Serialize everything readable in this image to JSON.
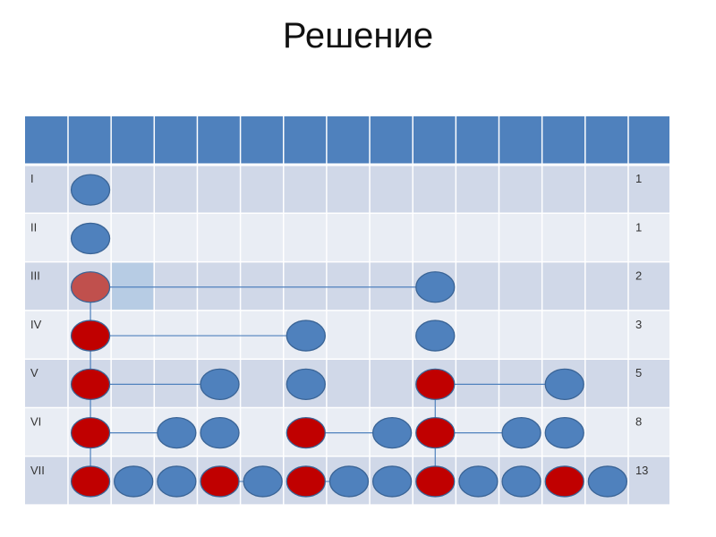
{
  "title": "Решение",
  "colors": {
    "header": "#4f81bd",
    "row_dark": "#d0d8e8",
    "row_light": "#e9edf4",
    "blue_circle": "#4f81bd",
    "red_circle": "#c00000",
    "faded_red_circle": "#c0504d",
    "highlight": "#b7cce4",
    "line": "#4f81bd"
  },
  "rows": [
    {
      "label": "I",
      "count": "1",
      "circles": [
        {
          "col": 0,
          "color": "blue"
        }
      ]
    },
    {
      "label": "II",
      "count": "1",
      "circles": [
        {
          "col": 0,
          "color": "blue"
        }
      ]
    },
    {
      "label": "III",
      "count": "2",
      "circles": [
        {
          "col": 0,
          "color": "faded-red"
        },
        {
          "col": 8,
          "color": "blue"
        }
      ]
    },
    {
      "label": "IV",
      "count": "3",
      "circles": [
        {
          "col": 0,
          "color": "red"
        },
        {
          "col": 5,
          "color": "blue"
        },
        {
          "col": 8,
          "color": "blue"
        }
      ]
    },
    {
      "label": "V",
      "count": "5",
      "circles": [
        {
          "col": 0,
          "color": "red"
        },
        {
          "col": 3,
          "color": "blue"
        },
        {
          "col": 5,
          "color": "blue"
        },
        {
          "col": 8,
          "color": "red"
        },
        {
          "col": 11,
          "color": "blue"
        }
      ]
    },
    {
      "label": "VI",
      "count": "8",
      "circles": [
        {
          "col": 0,
          "color": "red"
        },
        {
          "col": 2,
          "color": "blue"
        },
        {
          "col": 3,
          "color": "blue"
        },
        {
          "col": 5,
          "color": "red"
        },
        {
          "col": 7,
          "color": "blue"
        },
        {
          "col": 8,
          "color": "red"
        },
        {
          "col": 10,
          "color": "blue"
        },
        {
          "col": 11,
          "color": "blue"
        }
      ]
    },
    {
      "label": "VII",
      "count": "13",
      "circles": [
        {
          "col": 0,
          "color": "red"
        },
        {
          "col": 1,
          "color": "blue"
        },
        {
          "col": 2,
          "color": "blue"
        },
        {
          "col": 3,
          "color": "red"
        },
        {
          "col": 4,
          "color": "blue"
        },
        {
          "col": 5,
          "color": "red"
        },
        {
          "col": 6,
          "color": "blue"
        },
        {
          "col": 7,
          "color": "blue"
        },
        {
          "col": 8,
          "color": "red"
        },
        {
          "col": 9,
          "color": "blue"
        },
        {
          "col": 10,
          "color": "blue"
        },
        {
          "col": 11,
          "color": "red"
        },
        {
          "col": 12,
          "color": "blue"
        }
      ]
    }
  ],
  "connections": [
    {
      "from": [
        2,
        0
      ],
      "to": [
        2,
        8
      ]
    },
    {
      "from": [
        2,
        0
      ],
      "to": [
        3,
        0
      ]
    },
    {
      "from": [
        3,
        0
      ],
      "to": [
        3,
        5
      ]
    },
    {
      "from": [
        3,
        0
      ],
      "to": [
        4,
        0
      ]
    },
    {
      "from": [
        4,
        0
      ],
      "to": [
        4,
        3
      ]
    },
    {
      "from": [
        4,
        0
      ],
      "to": [
        5,
        0
      ]
    },
    {
      "from": [
        4,
        8
      ],
      "to": [
        4,
        11
      ]
    },
    {
      "from": [
        4,
        8
      ],
      "to": [
        5,
        8
      ]
    },
    {
      "from": [
        5,
        0
      ],
      "to": [
        5,
        2
      ]
    },
    {
      "from": [
        5,
        0
      ],
      "to": [
        6,
        0
      ]
    },
    {
      "from": [
        5,
        5
      ],
      "to": [
        5,
        7
      ]
    },
    {
      "from": [
        5,
        8
      ],
      "to": [
        5,
        10
      ]
    },
    {
      "from": [
        5,
        8
      ],
      "to": [
        6,
        8
      ]
    },
    {
      "from": [
        6,
        3
      ],
      "to": [
        6,
        4
      ]
    },
    {
      "from": [
        6,
        5
      ],
      "to": [
        6,
        6
      ]
    }
  ]
}
